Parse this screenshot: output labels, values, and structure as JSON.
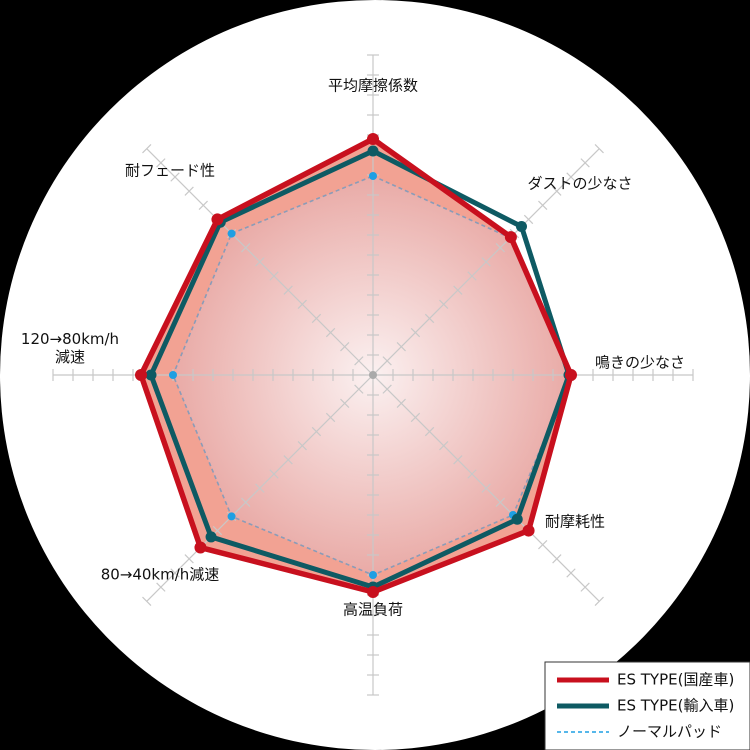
{
  "chart_data": {
    "type": "radar",
    "categories": [
      "平均摩擦係数",
      "ダストの少なさ",
      "鳴きの少なさ",
      "耐摩耗性",
      "高温負荷",
      "80→40km/h減速",
      "120→80km/h\n減速",
      "耐フェード性"
    ],
    "rlim": [
      0,
      16
    ],
    "rticks": [
      1,
      2,
      3,
      4,
      5,
      6,
      7,
      8,
      9,
      10,
      11,
      12,
      13,
      14,
      15,
      16
    ],
    "series": [
      {
        "name": "ES TYPE(国産車)",
        "color": "#c8101e",
        "values": [
          11.8,
          9.75,
          9.9,
          11,
          10.85,
          12.2,
          11.6,
          11
        ]
      },
      {
        "name": "ES TYPE(輸入車)",
        "color": "#0e5a63",
        "values": [
          11.2,
          10.5,
          9.8,
          10.2,
          10.6,
          11.45,
          11.1,
          10.8
        ]
      },
      {
        "name": "ノーマルパッド",
        "color": "#1e9fe3",
        "values": [
          9.95,
          9.7,
          9.9,
          9.9,
          10,
          10,
          10,
          10
        ]
      }
    ],
    "legend": "bottom-right"
  }
}
